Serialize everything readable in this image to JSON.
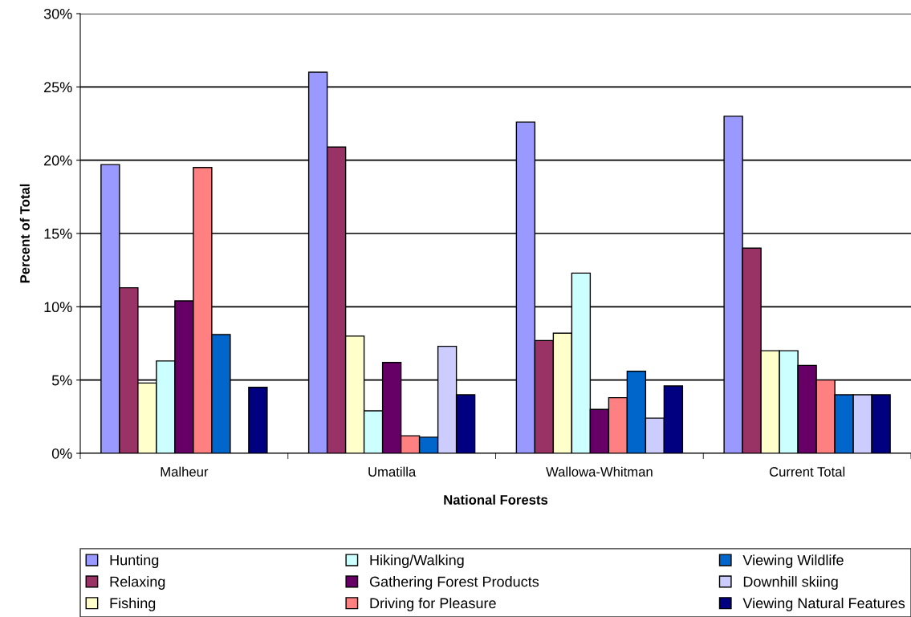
{
  "chart_data": {
    "type": "bar",
    "xlabel": "National Forests",
    "ylabel": "Percent of Total",
    "categories": [
      "Malheur",
      "Umatilla",
      "Wallowa-Whitman",
      "Current Total"
    ],
    "series": [
      {
        "name": "Hunting",
        "color": "#9999ff",
        "values": [
          19.7,
          26.0,
          22.6,
          23.0
        ]
      },
      {
        "name": "Relaxing",
        "color": "#993366",
        "values": [
          11.3,
          20.9,
          7.7,
          14.0
        ]
      },
      {
        "name": "Fishing",
        "color": "#ffffcc",
        "values": [
          4.8,
          8.0,
          8.2,
          7.0
        ]
      },
      {
        "name": "Hiking/Walking",
        "color": "#ccffff",
        "values": [
          6.3,
          2.9,
          12.3,
          7.0
        ]
      },
      {
        "name": "Gathering Forest Products",
        "color": "#660066",
        "values": [
          10.4,
          6.2,
          3.0,
          6.0
        ]
      },
      {
        "name": "Driving for Pleasure",
        "color": "#ff8080",
        "values": [
          19.5,
          1.2,
          3.8,
          5.0
        ]
      },
      {
        "name": "Viewing Wildlife",
        "color": "#0066cc",
        "values": [
          8.1,
          1.1,
          5.6,
          4.0
        ]
      },
      {
        "name": "Downhill skiing",
        "color": "#ccccff",
        "values": [
          null,
          7.3,
          2.4,
          4.0
        ]
      },
      {
        "name": "Viewing Natural Features",
        "color": "#000080",
        "values": [
          4.5,
          4.0,
          4.6,
          4.0
        ]
      }
    ],
    "ylim": [
      0,
      30
    ],
    "yticks": [
      {
        "value": 0,
        "label": "0%"
      },
      {
        "value": 5,
        "label": "5%"
      },
      {
        "value": 10,
        "label": "10%"
      },
      {
        "value": 15,
        "label": "15%"
      },
      {
        "value": 20,
        "label": "20%"
      },
      {
        "value": 25,
        "label": "25%"
      },
      {
        "value": 30,
        "label": "30%"
      }
    ],
    "grid": "y",
    "legend": "bottom"
  }
}
